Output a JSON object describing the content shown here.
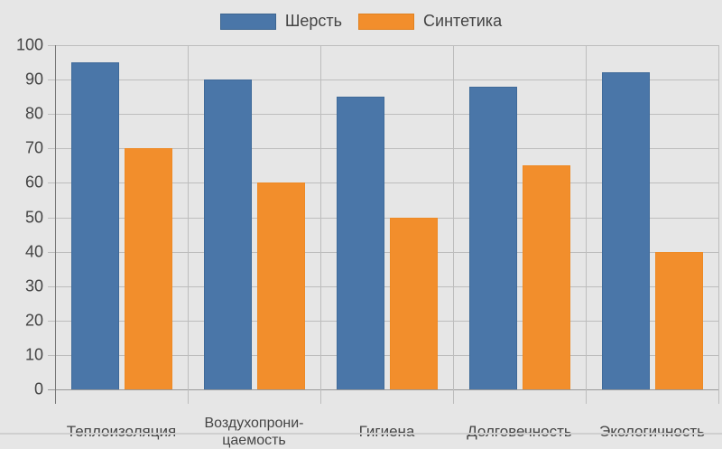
{
  "chart_data": {
    "type": "bar",
    "title": "",
    "xlabel": "",
    "ylabel": "",
    "categories": [
      "Теплоизоляция",
      "Воздухопрони-\nцаемость",
      "Гигиена",
      "Долговечность",
      "Экологичность"
    ],
    "series": [
      {
        "name": "Шерсть",
        "color": "#4a76a8",
        "values": [
          95,
          90,
          85,
          88,
          92
        ]
      },
      {
        "name": "Синтетика",
        "color": "#f28e2c",
        "values": [
          70,
          60,
          50,
          65,
          40
        ]
      }
    ],
    "ylim": [
      0,
      100
    ],
    "yticks": [
      0,
      10,
      20,
      30,
      40,
      50,
      60,
      70,
      80,
      90,
      100
    ],
    "grid": true,
    "legend_position": "top"
  },
  "legend": {
    "items": [
      {
        "label": "Шерсть",
        "color": "#4a76a8"
      },
      {
        "label": "Синтетика",
        "color": "#f28e2c"
      }
    ]
  }
}
